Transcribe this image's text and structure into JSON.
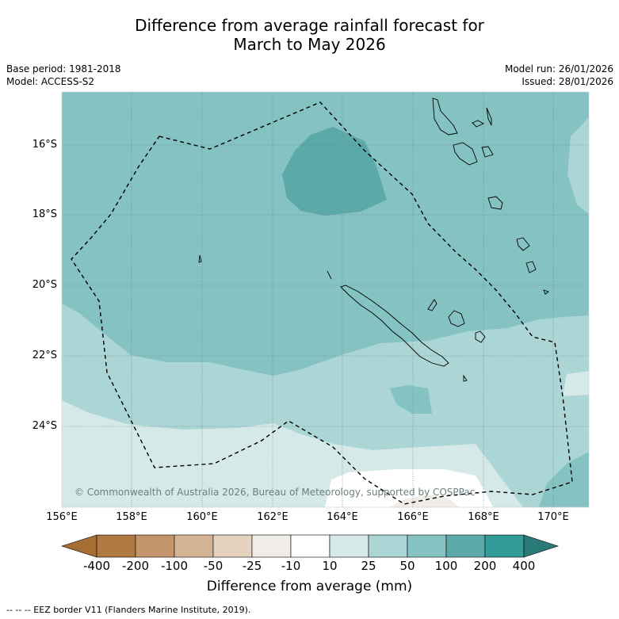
{
  "title": {
    "line1": "Difference from average rainfall forecast for",
    "line2": "March to May 2026"
  },
  "meta": {
    "base_period": "Base period: 1981-2018",
    "model": "Model: ACCESS-S2",
    "model_run": "Model run: 26/01/2026",
    "issued": "Issued: 28/01/2026"
  },
  "map": {
    "lat_labels": [
      "16°S",
      "18°S",
      "20°S",
      "22°S",
      "24°S"
    ],
    "lon_labels": [
      "156°E",
      "158°E",
      "160°E",
      "162°E",
      "164°E",
      "166°E",
      "168°E",
      "170°E"
    ],
    "credit": "© Commonwealth of Australia 2026, Bureau of Meteorology, supported by COSPPac"
  },
  "colorbar": {
    "labels": [
      "-400",
      "-200",
      "-100",
      "-50",
      "-25",
      "-10",
      "10",
      "25",
      "50",
      "100",
      "200",
      "400"
    ],
    "colors": [
      "#a66d35",
      "#b07942",
      "#c4956a",
      "#d4b494",
      "#e5d2bf",
      "#f0ece8",
      "#ffffff",
      "#d5e9e8",
      "#acd5d5",
      "#85c2c2",
      "#5ba9a9",
      "#339b98",
      "#2a7a78"
    ],
    "title": "Difference from average (mm)"
  },
  "legend_note": "--  --  -- EEZ border V11 (Flanders Marine Institute, 2019)."
}
